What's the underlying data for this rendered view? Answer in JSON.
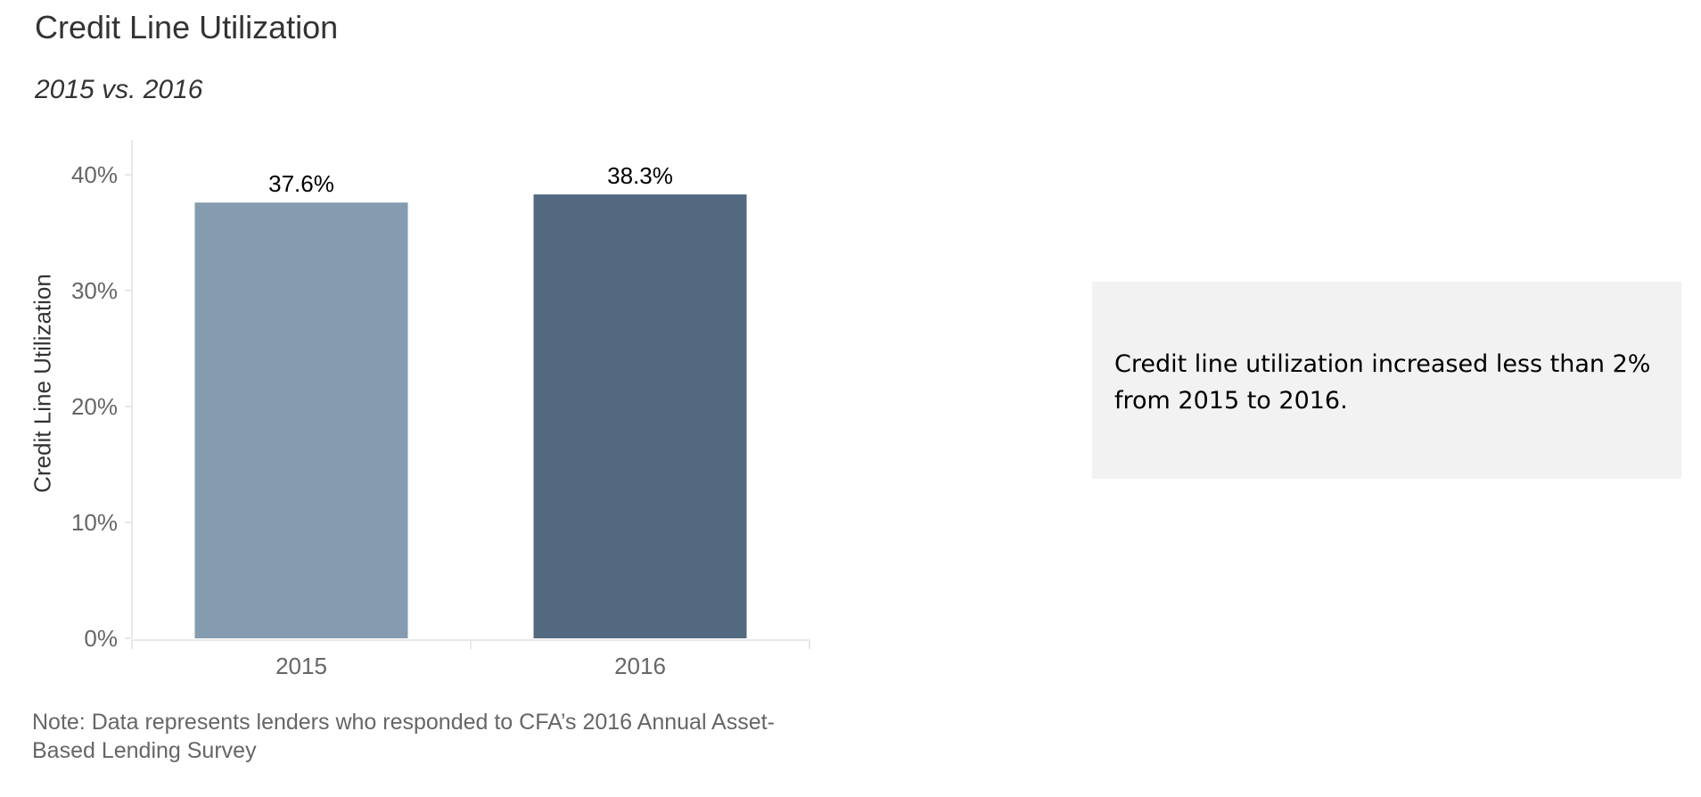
{
  "chart_data": {
    "type": "bar",
    "title": "Credit Line Utilization",
    "subtitle": "2015 vs. 2016",
    "xlabel": "",
    "ylabel": "Credit Line Utilization",
    "categories": [
      "2015",
      "2016"
    ],
    "values": [
      37.6,
      38.3
    ],
    "data_labels": [
      "37.6%",
      "38.3%"
    ],
    "bar_colors": [
      "#859cb0",
      "#52697f"
    ],
    "ylim": [
      0,
      43
    ],
    "yticks": [
      0,
      10,
      20,
      30,
      40
    ],
    "ytick_labels": [
      "0%",
      "10%",
      "20%",
      "30%",
      "40%"
    ],
    "grid": false,
    "legend": "none"
  },
  "annotation": {
    "text": "Credit line utilization increased less than 2% from 2015 to 2016."
  },
  "note": "Note: Data represents lenders who responded to CFA’s 2016 Annual Asset-Based Lending Survey"
}
